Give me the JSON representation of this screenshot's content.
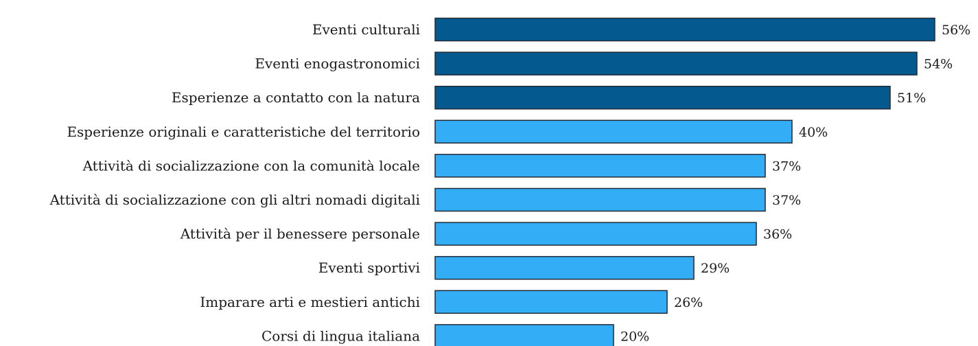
{
  "chart_data": {
    "type": "bar",
    "orientation": "horizontal",
    "title": "",
    "xlabel": "",
    "ylabel": "",
    "xlim": [
      0,
      56
    ],
    "grid": false,
    "legend": "none",
    "categories": [
      "Eventi culturali",
      "Eventi enogastronomici",
      "Esperienze a contatto con la natura",
      "Esperienze originali e caratteristiche del territorio",
      "Attività di socializzazione con la comunità locale",
      "Attività di socializzazione con gli altri nomadi digitali",
      "Attività per il benessere personale",
      "Eventi sportivi",
      "Imparare arti e mestieri antichi",
      "Corsi di lingua italiana"
    ],
    "values": [
      56,
      54,
      51,
      40,
      37,
      37,
      36,
      29,
      26,
      20
    ],
    "value_labels": [
      "56%",
      "54%",
      "51%",
      "40%",
      "37%",
      "37%",
      "36%",
      "29%",
      "26%",
      "20%"
    ],
    "highlighted": [
      true,
      true,
      true,
      false,
      false,
      false,
      false,
      false,
      false,
      false
    ],
    "colors": {
      "highlight": "#04598f",
      "normal": "#33adf5",
      "outline": "#1f2a36"
    }
  }
}
